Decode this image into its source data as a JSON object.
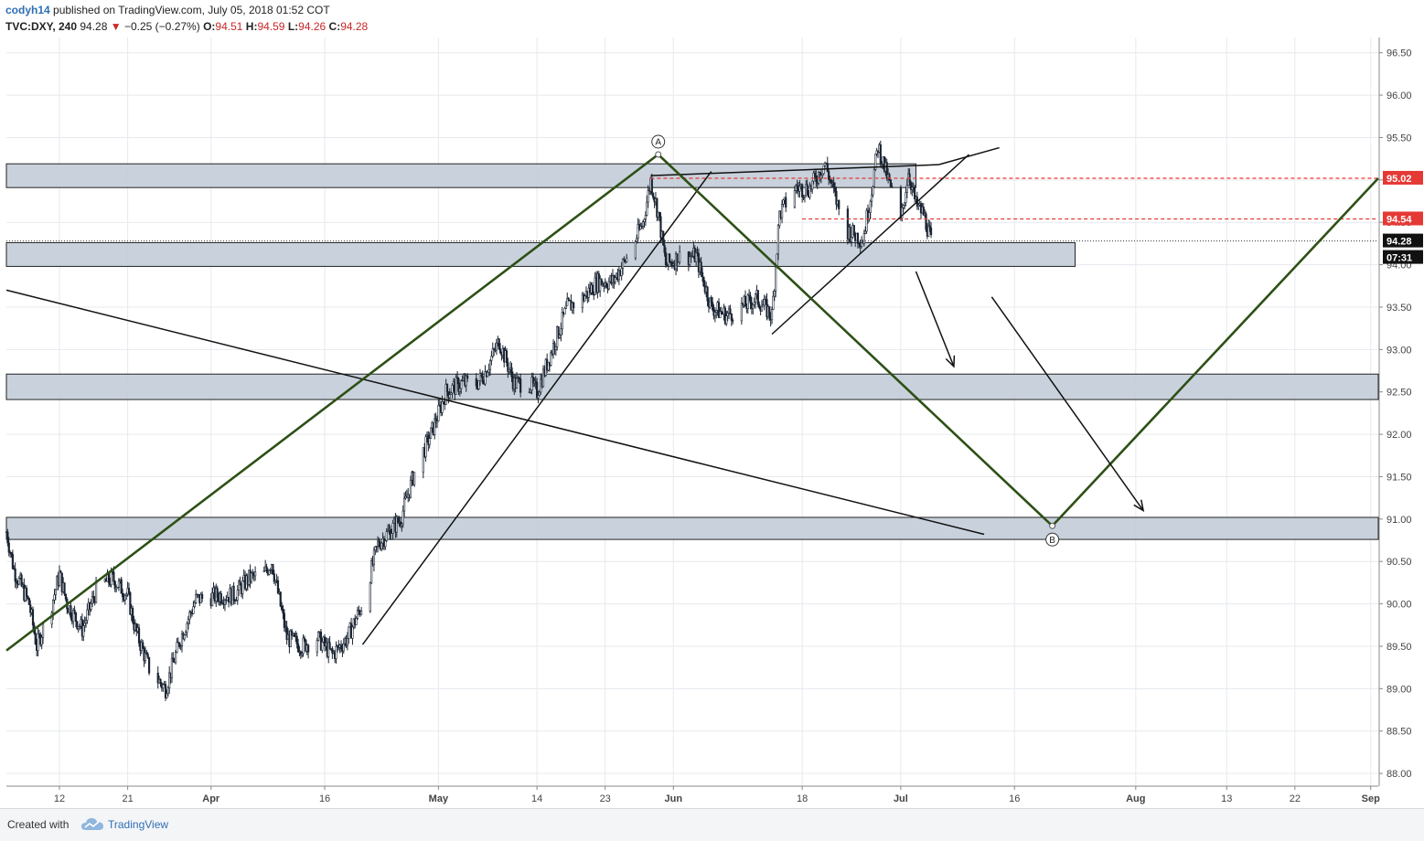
{
  "header": {
    "author": "codyh14",
    "published_text": "published on TradingView.com, July 05, 2018 01:52 COT",
    "symbol": "TVC:DXY, 240",
    "last": "94.28",
    "change_arrow": "▼",
    "change": "−0.25 (−0.27%)",
    "o_label": "O:",
    "o_value": "94.51",
    "h_label": "H:",
    "h_value": "94.59",
    "l_label": "L:",
    "l_value": "94.26",
    "c_label": "C:",
    "c_value": "94.28"
  },
  "footer": {
    "created_with": "Created with",
    "brand": "TradingView",
    "logo_icon": "tradingview-cloud-icon"
  },
  "colors": {
    "zone_fill": "#bfcad6",
    "zone_stroke": "#222222",
    "green_line": "#2d5016",
    "red_dash": "#e53935",
    "grid": "#e6e9ee",
    "candle": "#1a2432"
  },
  "chart_data": {
    "type": "candlestick",
    "y_axis": {
      "min": 87.85,
      "max": 96.68,
      "ticks": [
        "88.00",
        "88.50",
        "89.00",
        "89.50",
        "90.00",
        "90.50",
        "91.00",
        "91.50",
        "92.00",
        "92.50",
        "93.00",
        "93.50",
        "94.00",
        "94.50",
        "95.00",
        "95.50",
        "96.00",
        "96.50"
      ]
    },
    "x_axis": {
      "range": [
        "2018-03-05",
        "2018-09-02"
      ],
      "ticks": [
        {
          "date": "2018-03-12",
          "label": "12"
        },
        {
          "date": "2018-03-21",
          "label": "21"
        },
        {
          "date": "2018-04-01",
          "label": "Apr"
        },
        {
          "date": "2018-04-16",
          "label": "16"
        },
        {
          "date": "2018-05-01",
          "label": "May"
        },
        {
          "date": "2018-05-14",
          "label": "14"
        },
        {
          "date": "2018-05-23",
          "label": "23"
        },
        {
          "date": "2018-06-01",
          "label": "Jun"
        },
        {
          "date": "2018-06-18",
          "label": "18"
        },
        {
          "date": "2018-07-01",
          "label": "Jul"
        },
        {
          "date": "2018-07-16",
          "label": "16"
        },
        {
          "date": "2018-08-01",
          "label": "Aug"
        },
        {
          "date": "2018-08-13",
          "label": "13"
        },
        {
          "date": "2018-08-22",
          "label": "22"
        },
        {
          "date": "2018-09-01",
          "label": "Sep"
        }
      ]
    },
    "price_path": [
      [
        "2018-03-05",
        90.85
      ],
      [
        "2018-03-06",
        90.4
      ],
      [
        "2018-03-08",
        90.0
      ],
      [
        "2018-03-09",
        89.5
      ],
      [
        "2018-03-11",
        90.0
      ],
      [
        "2018-03-12",
        90.35
      ],
      [
        "2018-03-13",
        90.0
      ],
      [
        "2018-03-15",
        89.7
      ],
      [
        "2018-03-17",
        90.2
      ],
      [
        "2018-03-19",
        90.3
      ],
      [
        "2018-03-21",
        90.1
      ],
      [
        "2018-03-22",
        89.7
      ],
      [
        "2018-03-24",
        89.2
      ],
      [
        "2018-03-26",
        89.0
      ],
      [
        "2018-03-28",
        89.6
      ],
      [
        "2018-03-30",
        90.05
      ],
      [
        "2018-04-02",
        90.1
      ],
      [
        "2018-04-04",
        90.1
      ],
      [
        "2018-04-06",
        90.3
      ],
      [
        "2018-04-08",
        90.35
      ],
      [
        "2018-04-09",
        90.5
      ],
      [
        "2018-04-11",
        89.6
      ],
      [
        "2018-04-13",
        89.5
      ],
      [
        "2018-04-15",
        89.6
      ],
      [
        "2018-04-17",
        89.4
      ],
      [
        "2018-04-19",
        89.6
      ],
      [
        "2018-04-21",
        90.0
      ],
      [
        "2018-04-23",
        90.7
      ],
      [
        "2018-04-26",
        91.0
      ],
      [
        "2018-04-28",
        91.6
      ],
      [
        "2018-04-30",
        92.0
      ],
      [
        "2018-05-02",
        92.5
      ],
      [
        "2018-05-04",
        92.6
      ],
      [
        "2018-05-06",
        92.6
      ],
      [
        "2018-05-07",
        92.7
      ],
      [
        "2018-05-09",
        93.1
      ],
      [
        "2018-05-11",
        92.6
      ],
      [
        "2018-05-13",
        92.6
      ],
      [
        "2018-05-14",
        92.5
      ],
      [
        "2018-05-16",
        93.0
      ],
      [
        "2018-05-18",
        93.5
      ],
      [
        "2018-05-20",
        93.6
      ],
      [
        "2018-05-22",
        93.8
      ],
      [
        "2018-05-24",
        93.8
      ],
      [
        "2018-05-26",
        94.1
      ],
      [
        "2018-05-28",
        94.5
      ],
      [
        "2018-05-29",
        95.0
      ],
      [
        "2018-05-30",
        94.6
      ],
      [
        "2018-05-31",
        94.0
      ],
      [
        "2018-06-02",
        94.1
      ],
      [
        "2018-06-04",
        94.1
      ],
      [
        "2018-06-06",
        93.5
      ],
      [
        "2018-06-08",
        93.4
      ],
      [
        "2018-06-10",
        93.5
      ],
      [
        "2018-06-12",
        93.6
      ],
      [
        "2018-06-14",
        93.4
      ],
      [
        "2018-06-15",
        94.6
      ],
      [
        "2018-06-17",
        94.9
      ],
      [
        "2018-06-19",
        94.9
      ],
      [
        "2018-06-21",
        95.2
      ],
      [
        "2018-06-23",
        94.6
      ],
      [
        "2018-06-24",
        94.4
      ],
      [
        "2018-06-26",
        94.3
      ],
      [
        "2018-06-27",
        94.8
      ],
      [
        "2018-06-28",
        95.4
      ],
      [
        "2018-06-29",
        95.1
      ],
      [
        "2018-07-01",
        94.5
      ],
      [
        "2018-07-02",
        95.1
      ],
      [
        "2018-07-03",
        94.7
      ],
      [
        "2018-07-04",
        94.6
      ],
      [
        "2018-07-05",
        94.28
      ]
    ],
    "last_price": 94.28,
    "price_labels": [
      {
        "value": "95.02",
        "style": "red"
      },
      {
        "value": "94.54",
        "style": "red"
      },
      {
        "value": "94.28",
        "style": "dark"
      },
      {
        "value": "07:31",
        "style": "dark"
      }
    ],
    "zones": [
      {
        "from": 94.91,
        "to": 95.19,
        "start": "2018-03-05",
        "end": "2018-07-03"
      },
      {
        "from": 93.98,
        "to": 94.26,
        "start": "2018-03-05",
        "end": "2018-07-24"
      },
      {
        "from": 92.41,
        "to": 92.71,
        "start": "2018-03-05",
        "end": "2018-09-02"
      },
      {
        "from": 90.76,
        "to": 91.02,
        "start": "2018-03-05",
        "end": "2018-09-02"
      }
    ],
    "red_levels": [
      {
        "value": 95.02,
        "start": "2018-05-29"
      },
      {
        "value": 94.54,
        "start": "2018-06-18"
      }
    ],
    "green_path": [
      [
        "2018-03-05",
        89.45
      ],
      [
        "2018-05-30",
        95.3
      ],
      [
        "2018-07-21",
        90.92
      ],
      [
        "2018-09-02",
        95.02
      ]
    ],
    "black_lines": [
      [
        [
          "2018-03-05",
          93.7
        ],
        [
          "2018-07-12",
          90.82
        ]
      ],
      [
        [
          "2018-04-21",
          89.52
        ],
        [
          "2018-06-06",
          95.1
        ]
      ],
      [
        [
          "2018-05-29",
          95.05
        ],
        [
          "2018-07-06",
          95.18
        ]
      ],
      [
        [
          "2018-07-06",
          95.18
        ],
        [
          "2018-07-14",
          95.38
        ]
      ],
      [
        [
          "2018-06-14",
          93.18
        ],
        [
          "2018-07-10",
          95.3
        ]
      ]
    ],
    "arrows": [
      [
        [
          "2018-07-03",
          93.92
        ],
        [
          "2018-07-08",
          92.8
        ]
      ],
      [
        [
          "2018-07-13",
          93.62
        ],
        [
          "2018-08-02",
          91.1
        ]
      ]
    ],
    "points": [
      {
        "label": "A",
        "date": "2018-05-30",
        "value": 95.3
      },
      {
        "label": "B",
        "date": "2018-07-21",
        "value": 90.92
      }
    ]
  }
}
